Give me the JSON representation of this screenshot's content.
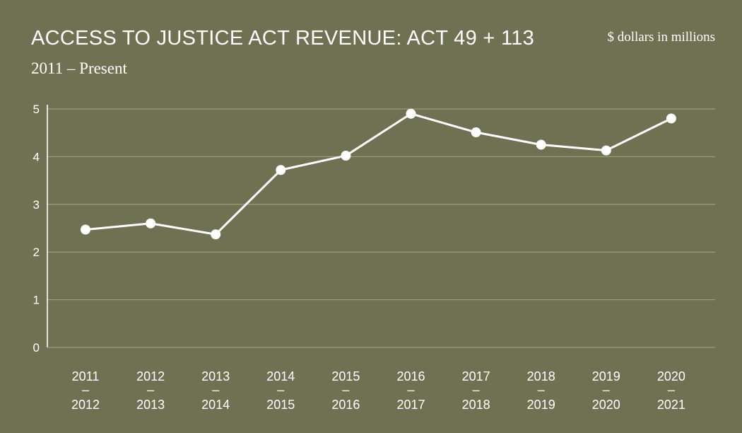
{
  "chart_data": {
    "type": "line",
    "title": "ACCESS TO JUSTICE ACT REVENUE: ACT 49 + 113",
    "subtitle": "2011 – Present",
    "unit_label": "$ dollars in millions",
    "categories": [
      {
        "top": "2011",
        "sep": "–",
        "bottom": "2012"
      },
      {
        "top": "2012",
        "sep": "–",
        "bottom": "2013"
      },
      {
        "top": "2013",
        "sep": "–",
        "bottom": "2014"
      },
      {
        "top": "2014",
        "sep": "–",
        "bottom": "2015"
      },
      {
        "top": "2015",
        "sep": "–",
        "bottom": "2016"
      },
      {
        "top": "2016",
        "sep": "–",
        "bottom": "2017"
      },
      {
        "top": "2017",
        "sep": "–",
        "bottom": "2018"
      },
      {
        "top": "2018",
        "sep": "–",
        "bottom": "2019"
      },
      {
        "top": "2019",
        "sep": "–",
        "bottom": "2020"
      },
      {
        "top": "2020",
        "sep": "–",
        "bottom": "2021"
      }
    ],
    "values": [
      2.47,
      2.6,
      2.37,
      3.72,
      4.02,
      4.9,
      4.51,
      4.25,
      4.13,
      4.8
    ],
    "yticks": [
      0,
      1,
      2,
      3,
      4,
      5
    ],
    "ylim": [
      0,
      5
    ],
    "grid": true,
    "legend": "none"
  },
  "colors": {
    "background": "#6e7152",
    "line": "#ffffff",
    "grid": "#a3a587",
    "text": "#ffffff"
  }
}
